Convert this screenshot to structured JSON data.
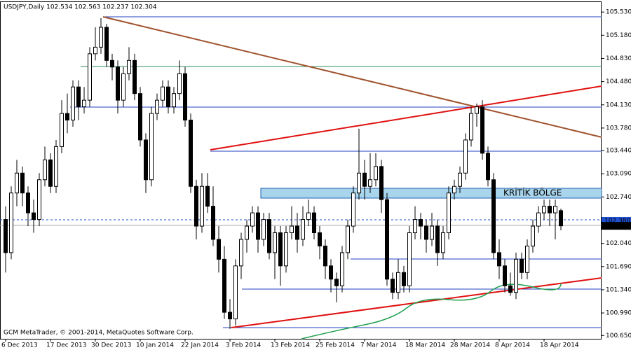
{
  "chart_data": {
    "type": "candlestick",
    "title": "USDJPY,Daily  102.534 102.563 102.237 102.304",
    "footer": "GCM MetaTrader, © 2001-2014, MetaQuotes Software Corp.",
    "zone_label": "KRİTİK BÖLGE",
    "bull_color": "#ffffff",
    "bear_color": "#000000",
    "ylim": [
      100.6,
      105.68
    ],
    "yticks": [
      {
        "value": 100.65,
        "label": "100.650"
      },
      {
        "value": 100.99,
        "label": "100.990"
      },
      {
        "value": 101.34,
        "label": "101.340"
      },
      {
        "value": 101.69,
        "label": "101.690"
      },
      {
        "value": 102.04,
        "label": "102.040"
      },
      {
        "value": 102.39,
        "label": "102.390"
      },
      {
        "value": 102.74,
        "label": "102.740"
      },
      {
        "value": 103.09,
        "label": "103.090"
      },
      {
        "value": 103.44,
        "label": "103.440"
      },
      {
        "value": 103.78,
        "label": "103.780"
      },
      {
        "value": 104.13,
        "label": "104.130"
      },
      {
        "value": 104.48,
        "label": "104.480"
      },
      {
        "value": 104.83,
        "label": "104.830"
      },
      {
        "value": 105.18,
        "label": "105.180"
      },
      {
        "value": 105.53,
        "label": "105.530"
      }
    ],
    "price_markers": [
      {
        "value": 102.38,
        "label": "102.380",
        "color": "#2050d0"
      },
      {
        "value": 102.304,
        "label": "102.304",
        "color": "#000000"
      }
    ],
    "categories": [
      "6 Dec 2013",
      null,
      null,
      null,
      null,
      null,
      null,
      null,
      "17 Dec 2013",
      null,
      null,
      null,
      null,
      null,
      null,
      null,
      "30 Dec 2013",
      null,
      null,
      null,
      null,
      null,
      null,
      null,
      "10 Jan 2014",
      null,
      null,
      null,
      null,
      null,
      null,
      null,
      "22 Jan 2014",
      null,
      null,
      null,
      null,
      null,
      null,
      null,
      "3 Feb 2014",
      null,
      null,
      null,
      null,
      null,
      null,
      null,
      "13 Feb 2014",
      null,
      null,
      null,
      null,
      null,
      null,
      null,
      "25 Feb 2014",
      null,
      null,
      null,
      null,
      null,
      null,
      null,
      "7 Mar 2014",
      null,
      null,
      null,
      null,
      null,
      null,
      null,
      "18 Mar 2014",
      null,
      null,
      null,
      null,
      null,
      null,
      null,
      "28 Mar 2014",
      null,
      null,
      null,
      null,
      null,
      null,
      null,
      "8 Apr 2014",
      null,
      null,
      null,
      null,
      null,
      null,
      null,
      "18 Apr 2014",
      null,
      null,
      null
    ],
    "ohlc": [
      [
        102.4,
        102.6,
        101.6,
        101.9
      ],
      [
        101.9,
        102.9,
        101.8,
        102.8
      ],
      [
        102.8,
        103.3,
        102.6,
        103.1
      ],
      [
        103.1,
        103.2,
        102.6,
        102.8
      ],
      [
        102.8,
        102.9,
        102.3,
        102.5
      ],
      [
        102.5,
        102.7,
        102.2,
        102.4
      ],
      [
        102.4,
        103.1,
        102.3,
        103.0
      ],
      [
        103.0,
        103.5,
        102.9,
        103.3
      ],
      [
        103.3,
        103.4,
        102.8,
        102.9
      ],
      [
        102.9,
        103.6,
        102.8,
        103.5
      ],
      [
        103.5,
        104.2,
        103.4,
        104.0
      ],
      [
        104.0,
        104.3,
        103.7,
        103.9
      ],
      [
        103.9,
        104.5,
        103.8,
        104.4
      ],
      [
        104.4,
        104.5,
        103.9,
        104.1
      ],
      [
        104.1,
        104.4,
        104.0,
        104.2
      ],
      [
        104.2,
        105.0,
        104.1,
        104.9
      ],
      [
        104.9,
        105.3,
        104.8,
        105.0
      ],
      [
        105.0,
        105.44,
        104.9,
        105.3
      ],
      [
        105.3,
        105.35,
        104.7,
        104.8
      ],
      [
        104.8,
        104.9,
        104.5,
        104.7
      ],
      [
        104.7,
        104.8,
        104.0,
        104.2
      ],
      [
        104.2,
        104.7,
        104.1,
        104.6
      ],
      [
        104.6,
        105.0,
        104.5,
        104.8
      ],
      [
        104.8,
        104.9,
        104.2,
        104.3
      ],
      [
        104.3,
        104.4,
        103.5,
        103.6
      ],
      [
        103.6,
        103.7,
        102.8,
        103.0
      ],
      [
        103.0,
        104.1,
        102.9,
        104.0
      ],
      [
        104.0,
        104.3,
        103.9,
        104.2
      ],
      [
        104.2,
        104.5,
        104.1,
        104.4
      ],
      [
        104.4,
        104.5,
        104.0,
        104.1
      ],
      [
        104.1,
        104.4,
        104.0,
        104.3
      ],
      [
        104.3,
        104.8,
        104.2,
        104.6
      ],
      [
        104.6,
        104.7,
        103.8,
        103.9
      ],
      [
        103.9,
        104.0,
        102.8,
        102.9
      ],
      [
        102.9,
        103.0,
        102.1,
        102.3
      ],
      [
        102.3,
        103.1,
        102.2,
        102.9
      ],
      [
        102.9,
        103.1,
        102.5,
        102.6
      ],
      [
        102.6,
        102.9,
        102.0,
        102.1
      ],
      [
        102.1,
        102.3,
        101.6,
        101.8
      ],
      [
        101.8,
        102.0,
        100.9,
        101.0
      ],
      [
        101.0,
        101.2,
        100.75,
        100.9
      ],
      [
        100.9,
        101.8,
        100.8,
        101.7
      ],
      [
        101.7,
        102.2,
        101.5,
        102.1
      ],
      [
        102.1,
        102.4,
        101.9,
        102.3
      ],
      [
        102.3,
        102.6,
        102.2,
        102.5
      ],
      [
        102.5,
        102.6,
        101.9,
        102.1
      ],
      [
        102.1,
        102.5,
        102.0,
        102.4
      ],
      [
        102.4,
        102.5,
        101.8,
        101.9
      ],
      [
        101.9,
        102.3,
        101.5,
        102.2
      ],
      [
        102.2,
        102.3,
        101.4,
        101.7
      ],
      [
        101.7,
        102.3,
        101.6,
        102.2
      ],
      [
        102.2,
        102.6,
        102.1,
        102.3
      ],
      [
        102.3,
        102.5,
        101.9,
        102.1
      ],
      [
        102.1,
        102.6,
        102.0,
        102.4
      ],
      [
        102.4,
        102.7,
        102.3,
        102.5
      ],
      [
        102.5,
        102.6,
        102.1,
        102.2
      ],
      [
        102.2,
        102.3,
        101.8,
        102.0
      ],
      [
        102.0,
        102.1,
        101.5,
        101.7
      ],
      [
        101.7,
        101.8,
        101.3,
        101.5
      ],
      [
        101.5,
        101.6,
        101.15,
        101.4
      ],
      [
        101.4,
        102.0,
        101.3,
        101.9
      ],
      [
        101.9,
        102.4,
        101.8,
        102.3
      ],
      [
        102.3,
        102.9,
        102.2,
        102.8
      ],
      [
        102.8,
        103.77,
        102.7,
        103.1
      ],
      [
        103.1,
        103.3,
        102.7,
        102.9
      ],
      [
        102.9,
        103.4,
        102.8,
        103.0
      ],
      [
        103.0,
        103.4,
        102.9,
        103.2
      ],
      [
        103.2,
        103.3,
        102.5,
        102.7
      ],
      [
        102.7,
        102.8,
        101.4,
        101.5
      ],
      [
        101.5,
        101.6,
        101.2,
        101.3
      ],
      [
        101.3,
        101.8,
        101.2,
        101.6
      ],
      [
        101.6,
        101.7,
        101.3,
        101.4
      ],
      [
        101.4,
        102.3,
        101.3,
        102.2
      ],
      [
        102.2,
        102.6,
        102.1,
        102.4
      ],
      [
        102.4,
        102.5,
        102.1,
        102.3
      ],
      [
        102.3,
        102.4,
        101.9,
        102.1
      ],
      [
        102.1,
        102.5,
        102.0,
        102.3
      ],
      [
        102.3,
        102.4,
        101.7,
        101.9
      ],
      [
        101.9,
        102.3,
        101.8,
        102.2
      ],
      [
        102.2,
        102.9,
        102.1,
        102.8
      ],
      [
        102.8,
        103.0,
        102.7,
        102.9
      ],
      [
        102.9,
        103.2,
        102.8,
        103.1
      ],
      [
        103.1,
        103.7,
        103.0,
        103.6
      ],
      [
        103.6,
        104.1,
        103.5,
        104.0
      ],
      [
        104.0,
        104.15,
        103.8,
        104.1
      ],
      [
        104.1,
        104.2,
        103.3,
        103.4
      ],
      [
        103.4,
        103.5,
        102.9,
        103.0
      ],
      [
        103.0,
        103.1,
        101.8,
        101.9
      ],
      [
        101.9,
        102.1,
        101.5,
        101.7
      ],
      [
        101.7,
        101.8,
        101.3,
        101.4
      ],
      [
        101.4,
        101.6,
        101.25,
        101.3
      ],
      [
        101.3,
        101.9,
        101.2,
        101.8
      ],
      [
        101.8,
        101.9,
        101.5,
        101.6
      ],
      [
        101.6,
        102.1,
        101.5,
        102.0
      ],
      [
        102.0,
        102.4,
        101.9,
        102.3
      ],
      [
        102.3,
        102.6,
        102.2,
        102.5
      ],
      [
        102.5,
        102.7,
        102.4,
        102.6
      ],
      [
        102.6,
        102.7,
        102.3,
        102.5
      ],
      [
        102.5,
        102.7,
        102.1,
        102.6
      ],
      [
        102.534,
        102.563,
        102.237,
        102.304
      ]
    ]
  }
}
